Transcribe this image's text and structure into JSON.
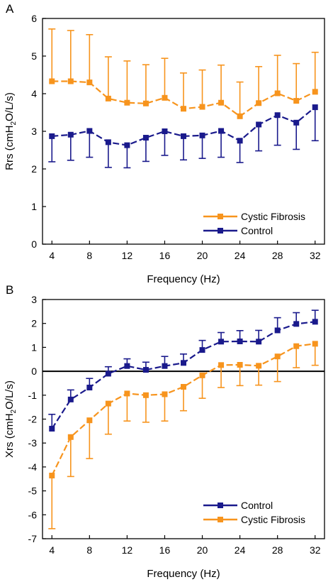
{
  "chart_data": [
    {
      "type": "line",
      "panel_label": "A",
      "xlabel": "Frequency (Hz)",
      "ylabel_parts": [
        "Rrs (cmH",
        "2",
        "O/L/s)"
      ],
      "xlim": [
        3,
        33
      ],
      "ylim": [
        0,
        6
      ],
      "xticks": [
        4,
        8,
        12,
        16,
        20,
        24,
        28,
        32
      ],
      "yticks": [
        0,
        1,
        2,
        3,
        4,
        5,
        6
      ],
      "x": [
        4,
        6,
        8,
        10,
        12,
        14,
        16,
        18,
        20,
        22,
        24,
        26,
        28,
        30,
        32
      ],
      "zero_line": false,
      "series": [
        {
          "name": "Cystic Fibrosis",
          "color": "#f7941d",
          "values": [
            4.33,
            4.33,
            4.3,
            3.87,
            3.76,
            3.74,
            3.89,
            3.6,
            3.65,
            3.76,
            3.4,
            3.75,
            4.01,
            3.81,
            4.05
          ],
          "error_hi": [
            5.72,
            5.68,
            5.57,
            4.98,
            4.87,
            4.77,
            4.94,
            4.55,
            4.63,
            4.76,
            4.31,
            4.72,
            5.02,
            4.8,
            5.1
          ],
          "error_lo": null
        },
        {
          "name": "Control",
          "color": "#1a1a8c",
          "values": [
            2.87,
            2.91,
            3.01,
            2.71,
            2.63,
            2.83,
            3.0,
            2.87,
            2.89,
            3.01,
            2.75,
            3.18,
            3.43,
            3.23,
            3.64
          ],
          "error_hi": null,
          "error_lo": [
            2.19,
            2.23,
            2.31,
            2.04,
            2.03,
            2.2,
            2.36,
            2.24,
            2.28,
            2.31,
            2.17,
            2.48,
            2.63,
            2.52,
            2.75
          ]
        }
      ],
      "legend": {
        "position": "bottom-right",
        "order": [
          "Cystic Fibrosis",
          "Control"
        ]
      }
    },
    {
      "type": "line",
      "panel_label": "B",
      "xlabel": "Frequency (Hz)",
      "ylabel_parts": [
        "Xrs (cmH",
        "2",
        "O/L/s)"
      ],
      "xlim": [
        3,
        33
      ],
      "ylim": [
        -7,
        3
      ],
      "xticks": [
        4,
        8,
        12,
        16,
        20,
        24,
        28,
        32
      ],
      "yticks": [
        -7,
        -6,
        -5,
        -4,
        -3,
        -2,
        -1,
        0,
        1,
        2,
        3
      ],
      "x": [
        4,
        6,
        8,
        10,
        12,
        14,
        16,
        18,
        20,
        22,
        24,
        26,
        28,
        30,
        32
      ],
      "zero_line": true,
      "series": [
        {
          "name": "Control",
          "color": "#1a1a8c",
          "values": [
            -2.4,
            -1.18,
            -0.68,
            -0.1,
            0.22,
            0.06,
            0.22,
            0.35,
            0.89,
            1.24,
            1.25,
            1.24,
            1.71,
            1.98,
            2.07
          ],
          "error_hi": [
            -1.8,
            -0.78,
            -0.3,
            0.19,
            0.52,
            0.38,
            0.62,
            0.72,
            1.29,
            1.62,
            1.7,
            1.71,
            2.24,
            2.45,
            2.55
          ],
          "error_lo": null
        },
        {
          "name": "Cystic Fibrosis",
          "color": "#f7941d",
          "values": [
            -4.36,
            -2.75,
            -2.05,
            -1.35,
            -0.93,
            -1.0,
            -0.96,
            -0.65,
            -0.17,
            0.26,
            0.27,
            0.23,
            0.62,
            1.05,
            1.15
          ],
          "error_hi": null,
          "error_lo": [
            -6.58,
            -4.4,
            -3.65,
            -2.63,
            -2.08,
            -2.13,
            -2.08,
            -1.65,
            -1.13,
            -0.68,
            -0.6,
            -0.58,
            -0.43,
            0.15,
            0.25
          ]
        }
      ],
      "legend": {
        "position": "bottom-right",
        "order": [
          "Control",
          "Cystic Fibrosis"
        ]
      }
    }
  ]
}
